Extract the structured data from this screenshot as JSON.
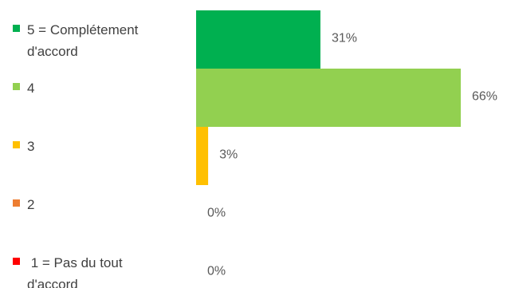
{
  "chart_data": {
    "type": "bar",
    "orientation": "horizontal",
    "categories": [
      "5 = Complétement d'accord",
      "4",
      "3",
      "2",
      "1 = Pas du tout d'accord"
    ],
    "category_lines": [
      [
        "5 = Complétement",
        "d'accord"
      ],
      [
        "4"
      ],
      [
        "3"
      ],
      [
        "2"
      ],
      [
        " 1 = Pas du tout",
        "d'accord"
      ]
    ],
    "values": [
      31,
      66,
      3,
      0,
      0
    ],
    "value_labels": [
      "31%",
      "66%",
      "3%",
      "0%",
      "0%"
    ],
    "colors": [
      "#00b050",
      "#92d050",
      "#ffc000",
      "#ed7d31",
      "#ff0000"
    ],
    "xlim": [
      0,
      66
    ],
    "grid": false,
    "legend": "left"
  }
}
